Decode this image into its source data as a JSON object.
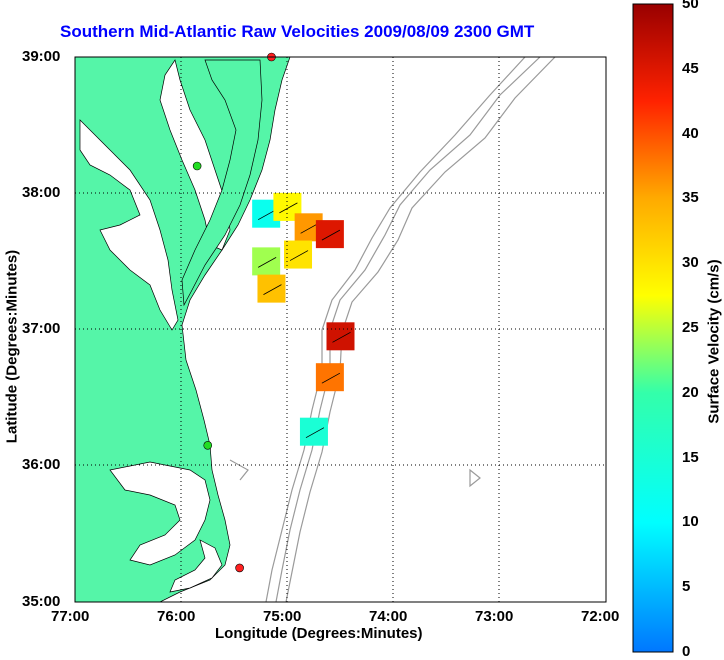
{
  "map": {
    "title": "Southern Mid-Atlantic Raw Velocities 2009/08/09 2300 GMT",
    "xlabel": "Longitude (Degrees:Minutes)",
    "ylabel": "Latitude (Degrees:Minutes)",
    "x_ticks": [
      "77:00",
      "76:00",
      "75:00",
      "74:00",
      "73:00",
      "72:00"
    ],
    "y_ticks": [
      "39:00",
      "38:00",
      "37:00",
      "36:00",
      "35:00"
    ],
    "land_color": "#55f5a8",
    "contour_color": "#9a9a9a",
    "station_colors": {
      "active": "#ff2020",
      "standby": "#22dd22"
    }
  },
  "colorbar": {
    "label": "Surface Velocity (cm/s)",
    "ticks": [
      "0",
      "5",
      "10",
      "15",
      "20",
      "25",
      "30",
      "35",
      "40",
      "45",
      "50"
    ],
    "range": [
      0,
      50
    ]
  },
  "chart_data": {
    "type": "heatmap",
    "xlim": [
      -77,
      -72
    ],
    "ylim": [
      35,
      39
    ],
    "grid": true,
    "stations": [
      {
        "lon": -75.15,
        "lat": 39.0,
        "status": "active"
      },
      {
        "lon": -75.85,
        "lat": 38.2,
        "status": "standby"
      },
      {
        "lon": -75.75,
        "lat": 36.15,
        "status": "standby"
      },
      {
        "lon": -75.45,
        "lat": 35.25,
        "status": "active"
      }
    ],
    "patches": [
      {
        "lon": -75.2,
        "lat": 37.85,
        "speed": 12
      },
      {
        "lon": -75.0,
        "lat": 37.9,
        "speed": 28
      },
      {
        "lon": -74.8,
        "lat": 37.75,
        "speed": 36
      },
      {
        "lon": -74.6,
        "lat": 37.7,
        "speed": 45
      },
      {
        "lon": -75.2,
        "lat": 37.5,
        "speed": 24
      },
      {
        "lon": -74.9,
        "lat": 37.55,
        "speed": 30
      },
      {
        "lon": -75.15,
        "lat": 37.3,
        "speed": 33
      },
      {
        "lon": -74.5,
        "lat": 36.95,
        "speed": 46
      },
      {
        "lon": -74.6,
        "lat": 36.65,
        "speed": 38
      },
      {
        "lon": -74.75,
        "lat": 36.25,
        "speed": 15
      }
    ]
  }
}
